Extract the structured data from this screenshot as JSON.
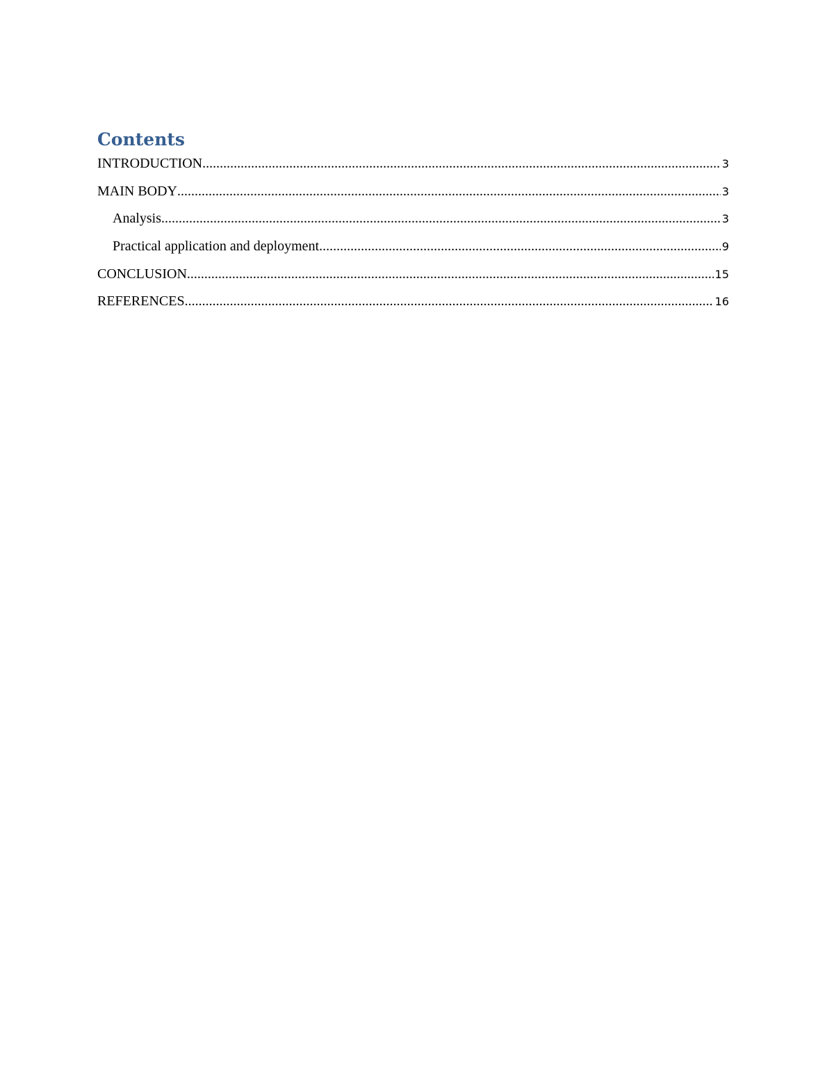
{
  "toc": {
    "title": "Contents",
    "entries": [
      {
        "label": "INTRODUCTION",
        "page": "3",
        "level": 1
      },
      {
        "label": "MAIN BODY",
        "page": "3",
        "level": 1
      },
      {
        "label": "Analysis",
        "page": "3",
        "level": 2
      },
      {
        "label": "Practical application and deployment",
        "page": "9",
        "level": 2
      },
      {
        "label": "CONCLUSION",
        "page": "15",
        "level": 1
      },
      {
        "label": "REFERENCES",
        "page": "16",
        "level": 1
      }
    ]
  },
  "colors": {
    "heading": "#365f91",
    "text": "#000000"
  }
}
